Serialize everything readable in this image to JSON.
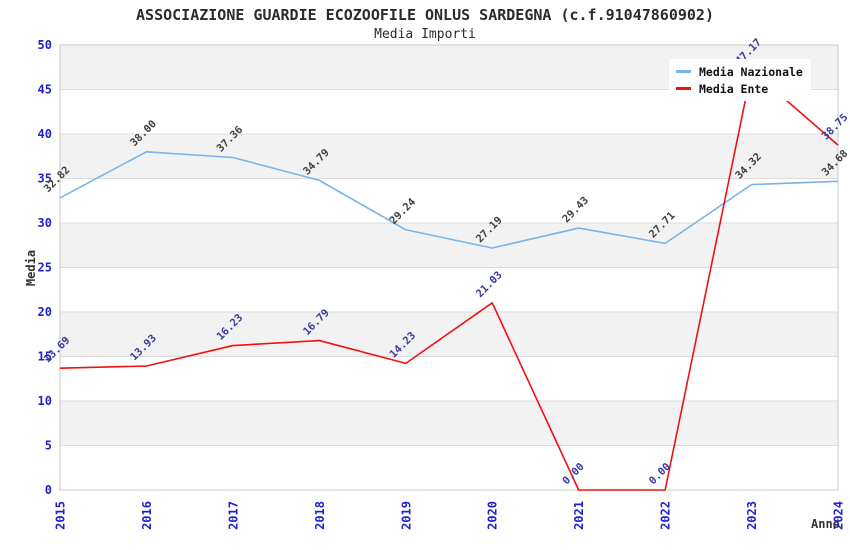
{
  "title": "ASSOCIAZIONE GUARDIE ECOZOOFILE ONLUS SARDEGNA (c.f.91047860902)",
  "subtitle": "Media Importi",
  "chart_data": {
    "type": "line",
    "x": [
      "2015",
      "2016",
      "2017",
      "2018",
      "2019",
      "2020",
      "2021",
      "2022",
      "2023",
      "2024"
    ],
    "series": [
      {
        "name": "Media Nazionale",
        "color": "#78b4ea",
        "label_color": "#404040",
        "values": [
          32.82,
          38.0,
          37.36,
          34.79,
          29.24,
          27.19,
          29.43,
          27.71,
          34.32,
          34.68
        ]
      },
      {
        "name": "Media Ente",
        "color": "#f21111",
        "label_color": "#3a3aa0",
        "values": [
          13.69,
          13.93,
          16.23,
          16.79,
          14.23,
          21.03,
          0.0,
          0.0,
          47.17,
          38.75
        ]
      }
    ],
    "xlabel": "Anno",
    "ylabel": "Media",
    "ylim": [
      0,
      50
    ],
    "ytick_step": 5,
    "yticks": [
      0,
      5,
      10,
      15,
      20,
      25,
      30,
      35,
      40,
      45,
      50
    ],
    "grid": "horizontal-bands",
    "legend_position": "top-right",
    "band_colors": [
      "#ffffff",
      "#f2f2f2"
    ],
    "gridline_color": "#dcdcdc",
    "plot_border_color": "#c8c8c8",
    "axis_tick_color": "#2121cc",
    "data_label_rotation": -45,
    "x_tick_rotation": -90
  }
}
